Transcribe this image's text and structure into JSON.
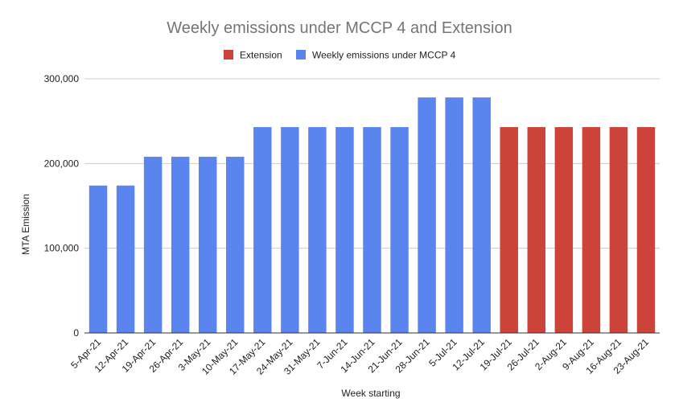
{
  "chart_data": {
    "type": "bar",
    "title": "Weekly emissions under MCCP 4 and Extension",
    "xlabel": "Week starting",
    "ylabel": "MTA Emission",
    "ylim": [
      0,
      300000
    ],
    "yticks": [
      0,
      100000,
      200000,
      300000
    ],
    "ytick_labels": [
      "0",
      "100,000",
      "200,000",
      "300,000"
    ],
    "grid": true,
    "legend_position": "top",
    "categories": [
      "5-Apr-21",
      "12-Apr-21",
      "19-Apr-21",
      "26-Apr-21",
      "3-May-21",
      "10-May-21",
      "17-May-21",
      "24-May-21",
      "31-May-21",
      "7-Jun-21",
      "14-Jun-21",
      "21-Jun-21",
      "28-Jun-21",
      "5-Jul-21",
      "12-Jul-21",
      "19-Jul-21",
      "26-Jul-21",
      "2-Aug-21",
      "9-Aug-21",
      "16-Aug-21",
      "23-Aug-21"
    ],
    "series": [
      {
        "name": "Extension",
        "color": "#cc4339",
        "values": [
          null,
          null,
          null,
          null,
          null,
          null,
          null,
          null,
          null,
          null,
          null,
          null,
          null,
          null,
          null,
          243000,
          243000,
          243000,
          243000,
          243000,
          243000
        ]
      },
      {
        "name": "Weekly emissions under MCCP 4",
        "color": "#5b85ee",
        "values": [
          174000,
          174000,
          208000,
          208000,
          208000,
          208000,
          243000,
          243000,
          243000,
          243000,
          243000,
          243000,
          278000,
          278000,
          278000,
          null,
          null,
          null,
          null,
          null,
          null
        ]
      }
    ]
  }
}
